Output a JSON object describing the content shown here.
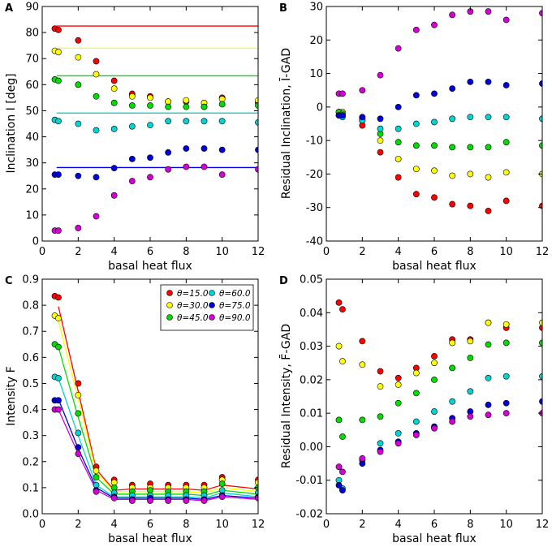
{
  "colors": {
    "theta_15": "#ff0000",
    "theta_30": "#ffff00",
    "theta_45": "#00dd00",
    "theta_60": "#00d5d5",
    "theta_75": "#0000dd",
    "theta_90": "#d500d5"
  },
  "legend": {
    "entries": [
      "θ=15.0",
      "θ=30.0",
      "θ=45.0",
      "θ=60.0",
      "θ=75.0",
      "θ=90.0"
    ]
  },
  "chart_data": [
    {
      "panel": "A",
      "type": "scatter",
      "xlabel": "basal heat flux",
      "ylabel": "Inclination I [deg]",
      "xlim": [
        0,
        12
      ],
      "ylim": [
        0,
        90
      ],
      "xticks": [
        0,
        2,
        4,
        6,
        8,
        10,
        12
      ],
      "yticks": [
        0,
        10,
        20,
        30,
        40,
        50,
        60,
        70,
        80,
        90
      ],
      "x": [
        0.7,
        0.9,
        2,
        3,
        4,
        5,
        6,
        7,
        8,
        9,
        10,
        12
      ],
      "reference_lines": [
        {
          "name": "θ=15.0",
          "y": 82.5
        },
        {
          "name": "θ=30.0",
          "y": 74.0
        },
        {
          "name": "θ=45.0",
          "y": 63.4
        },
        {
          "name": "θ=60.0",
          "y": 49.1
        },
        {
          "name": "θ=75.0",
          "y": 28.2
        }
      ],
      "series": [
        {
          "name": "θ=15.0",
          "values": [
            81.5,
            81.0,
            77.0,
            69.0,
            61.5,
            56.5,
            55.5,
            53.5,
            53.5,
            51.5,
            55.0,
            53.0
          ]
        },
        {
          "name": "θ=30.0",
          "values": [
            73.0,
            72.5,
            70.5,
            64.0,
            58.5,
            55.5,
            55.0,
            53.5,
            54.0,
            53.0,
            54.5,
            54.0
          ]
        },
        {
          "name": "θ=45.0",
          "values": [
            62.0,
            61.5,
            60.0,
            55.5,
            53.0,
            52.0,
            52.0,
            51.5,
            51.5,
            51.5,
            52.5,
            52.0
          ]
        },
        {
          "name": "θ=60.0",
          "values": [
            46.5,
            46.0,
            45.0,
            42.5,
            43.0,
            44.0,
            44.5,
            46.0,
            46.0,
            46.0,
            46.0,
            45.5
          ]
        },
        {
          "name": "θ=75.0",
          "values": [
            25.5,
            25.5,
            25.0,
            24.5,
            28.0,
            31.5,
            32.0,
            34.0,
            35.5,
            35.5,
            35.0,
            35.0
          ]
        },
        {
          "name": "θ=90.0",
          "values": [
            4.0,
            4.0,
            5.0,
            9.5,
            17.5,
            23.0,
            24.5,
            27.5,
            28.5,
            28.5,
            25.5,
            27.5
          ]
        }
      ]
    },
    {
      "panel": "B",
      "type": "scatter",
      "xlabel": "basal heat flux",
      "ylabel": "Residual Inclination, Ī-GAD",
      "xlim": [
        0,
        12
      ],
      "ylim": [
        -40,
        30
      ],
      "xticks": [
        0,
        2,
        4,
        6,
        8,
        10,
        12
      ],
      "yticks": [
        -40,
        -30,
        -20,
        -10,
        0,
        10,
        20,
        30
      ],
      "x": [
        0.7,
        0.9,
        2,
        3,
        4,
        5,
        6,
        7,
        8,
        9,
        10,
        12
      ],
      "series": [
        {
          "name": "θ=15.0",
          "values": [
            -2.5,
            -2.5,
            -5.5,
            -13.5,
            -21.0,
            -26.0,
            -27.0,
            -29.0,
            -29.5,
            -31.0,
            -28.0,
            -29.5
          ]
        },
        {
          "name": "θ=30.0",
          "values": [
            -1.5,
            -1.5,
            -4.0,
            -10.0,
            -15.5,
            -18.5,
            -19.0,
            -20.5,
            -20.0,
            -21.0,
            -19.5,
            -20.0
          ]
        },
        {
          "name": "θ=45.0",
          "values": [
            -1.5,
            -2.0,
            -3.5,
            -8.0,
            -10.5,
            -11.5,
            -11.5,
            -12.0,
            -12.0,
            -12.0,
            -10.5,
            -11.5
          ]
        },
        {
          "name": "θ=60.0",
          "values": [
            -2.5,
            -3.0,
            -4.0,
            -6.5,
            -6.5,
            -5.0,
            -4.5,
            -3.5,
            -3.0,
            -3.0,
            -3.0,
            -3.5
          ]
        },
        {
          "name": "θ=75.0",
          "values": [
            -2.5,
            -2.5,
            -3.0,
            -3.5,
            0.0,
            3.5,
            4.0,
            5.5,
            7.5,
            7.5,
            6.5,
            7.0
          ]
        },
        {
          "name": "θ=90.0",
          "values": [
            4.0,
            4.0,
            5.0,
            9.5,
            17.5,
            23.0,
            24.5,
            27.5,
            28.5,
            28.5,
            26.0,
            28.0
          ]
        }
      ]
    },
    {
      "panel": "C",
      "type": "line",
      "xlabel": "basal heat flux",
      "ylabel": "Intensity F",
      "xlim": [
        0,
        12
      ],
      "ylim": [
        0,
        0.9
      ],
      "xticks": [
        0,
        2,
        4,
        6,
        8,
        10,
        12
      ],
      "yticks": [
        0.0,
        0.1,
        0.2,
        0.3,
        0.4,
        0.5,
        0.6,
        0.7,
        0.8,
        0.9
      ],
      "legend_position": "top-right",
      "x": [
        0.7,
        0.9,
        2,
        3,
        4,
        5,
        6,
        7,
        8,
        9,
        10,
        12
      ],
      "line_x": [
        0.9,
        2,
        3,
        4,
        5,
        6,
        7,
        8,
        9,
        10,
        12
      ],
      "series": [
        {
          "name": "θ=15.0",
          "values": [
            0.835,
            0.83,
            0.5,
            0.18,
            0.13,
            0.11,
            0.115,
            0.11,
            0.11,
            0.11,
            0.14,
            0.13
          ],
          "line": [
            0.795,
            0.47,
            0.17,
            0.09,
            0.095,
            0.095,
            0.095,
            0.095,
            0.09,
            0.11,
            0.095
          ]
        },
        {
          "name": "θ=30.0",
          "values": [
            0.76,
            0.75,
            0.455,
            0.165,
            0.12,
            0.1,
            0.1,
            0.1,
            0.1,
            0.1,
            0.13,
            0.12
          ],
          "line": [
            0.74,
            0.44,
            0.16,
            0.085,
            0.085,
            0.085,
            0.085,
            0.085,
            0.08,
            0.1,
            0.085
          ]
        },
        {
          "name": "θ=45.0",
          "values": [
            0.65,
            0.64,
            0.385,
            0.14,
            0.1,
            0.085,
            0.09,
            0.085,
            0.085,
            0.085,
            0.115,
            0.1
          ],
          "line": [
            0.64,
            0.37,
            0.14,
            0.075,
            0.075,
            0.075,
            0.075,
            0.075,
            0.07,
            0.09,
            0.075
          ]
        },
        {
          "name": "θ=60.0",
          "values": [
            0.525,
            0.52,
            0.31,
            0.11,
            0.08,
            0.07,
            0.07,
            0.07,
            0.07,
            0.07,
            0.09,
            0.08
          ],
          "line": [
            0.52,
            0.3,
            0.11,
            0.065,
            0.065,
            0.065,
            0.065,
            0.065,
            0.06,
            0.08,
            0.065
          ]
        },
        {
          "name": "θ=75.0",
          "values": [
            0.435,
            0.435,
            0.255,
            0.09,
            0.065,
            0.055,
            0.06,
            0.055,
            0.055,
            0.055,
            0.07,
            0.065
          ],
          "line": [
            0.44,
            0.25,
            0.1,
            0.06,
            0.06,
            0.06,
            0.06,
            0.06,
            0.055,
            0.07,
            0.06
          ]
        },
        {
          "name": "θ=90.0",
          "values": [
            0.4,
            0.4,
            0.23,
            0.085,
            0.06,
            0.05,
            0.05,
            0.05,
            0.05,
            0.05,
            0.065,
            0.06
          ],
          "line": [
            0.4,
            0.23,
            0.09,
            0.055,
            0.055,
            0.055,
            0.055,
            0.055,
            0.05,
            0.065,
            0.055
          ]
        }
      ]
    },
    {
      "panel": "D",
      "type": "scatter",
      "xlabel": "basal heat flux",
      "ylabel": "Residual Intensity, F̄-GAD",
      "xlim": [
        0,
        12
      ],
      "ylim": [
        -0.02,
        0.05
      ],
      "xticks": [
        0,
        2,
        4,
        6,
        8,
        10,
        12
      ],
      "yticks": [
        -0.02,
        -0.01,
        0.0,
        0.01,
        0.02,
        0.03,
        0.04,
        0.05
      ],
      "ytick_labels": [
        "-0.02",
        "-0.01",
        "0.00",
        "0.01",
        "0.02",
        "0.03",
        "0.04",
        "0.05"
      ],
      "x": [
        0.7,
        0.9,
        2,
        3,
        4,
        5,
        6,
        7,
        8,
        9,
        10,
        12
      ],
      "series": [
        {
          "name": "θ=15.0",
          "values": [
            0.043,
            0.041,
            0.0315,
            0.0225,
            0.0205,
            0.0235,
            0.027,
            0.032,
            0.032,
            0.037,
            0.0355,
            0.0355
          ]
        },
        {
          "name": "θ=30.0",
          "values": [
            0.03,
            0.0255,
            0.0245,
            0.018,
            0.0185,
            0.022,
            0.025,
            0.031,
            0.0315,
            0.037,
            0.0365,
            0.037
          ]
        },
        {
          "name": "θ=45.0",
          "values": [
            0.008,
            0.003,
            0.008,
            0.009,
            0.013,
            0.016,
            0.02,
            0.0235,
            0.0265,
            0.0305,
            0.031,
            0.031
          ]
        },
        {
          "name": "θ=60.0",
          "values": [
            -0.01,
            -0.0125,
            -0.004,
            0.001,
            0.004,
            0.0075,
            0.0105,
            0.0135,
            0.0165,
            0.0205,
            0.021,
            0.021
          ]
        },
        {
          "name": "θ=75.0",
          "values": [
            -0.0115,
            -0.013,
            -0.005,
            -0.001,
            0.0015,
            0.004,
            0.006,
            0.0085,
            0.0105,
            0.0125,
            0.013,
            0.0135
          ]
        },
        {
          "name": "θ=90.0",
          "values": [
            -0.006,
            -0.0075,
            -0.0035,
            -0.0015,
            0.001,
            0.0035,
            0.0055,
            0.0075,
            0.009,
            0.0095,
            0.01,
            0.01
          ]
        }
      ]
    }
  ]
}
